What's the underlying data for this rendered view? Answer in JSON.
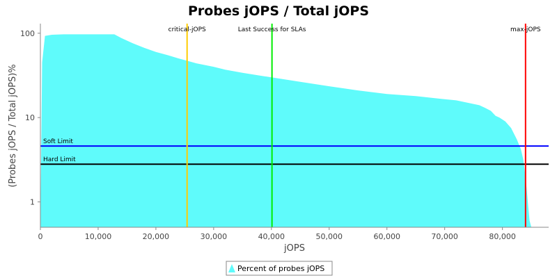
{
  "chart_data": {
    "type": "area",
    "title": "Probes jOPS / Total jOPS",
    "xlabel": "jOPS",
    "ylabel": "(Probes jOPS / Total jOPS)%",
    "x_scale": "linear",
    "y_scale": "log",
    "xlim": [
      0,
      88000
    ],
    "ylim": [
      0.5,
      130
    ],
    "x_ticks": [
      0,
      10000,
      20000,
      30000,
      40000,
      50000,
      60000,
      70000,
      80000
    ],
    "x_tick_labels": [
      "0",
      "10,000",
      "20,000",
      "30,000",
      "40,000",
      "50,000",
      "60,000",
      "70,000",
      "80,000"
    ],
    "y_ticks": [
      1,
      10,
      100
    ],
    "y_tick_labels": [
      "1",
      "10",
      "100"
    ],
    "grid": false,
    "legend_position": "bottom",
    "series": [
      {
        "name": "Percent of probes jOPS",
        "color": "#5ffbfb",
        "x": [
          0,
          300,
          800,
          2000,
          4000,
          6000,
          8000,
          10000,
          12000,
          12800,
          14000,
          16000,
          18000,
          20000,
          22000,
          24000,
          25500,
          27000,
          30000,
          32000,
          35000,
          38000,
          40000,
          45000,
          50000,
          55000,
          60000,
          65000,
          70000,
          72000,
          75000,
          76000,
          77000,
          78000,
          78800,
          79500,
          80500,
          81500,
          82500,
          83200,
          83600,
          84000,
          84400,
          84700,
          85000
        ],
        "y": [
          0.5,
          45,
          93,
          96,
          97,
          97,
          97,
          97,
          97,
          97,
          88,
          76,
          67,
          60,
          55,
          50,
          47,
          44,
          40,
          37,
          34,
          31.5,
          30,
          26.5,
          23.5,
          21,
          19,
          18,
          16.5,
          16,
          14.5,
          14,
          13,
          12,
          10.5,
          10,
          9,
          7.5,
          5.5,
          4.2,
          3.2,
          2,
          1,
          0.6,
          0.5
        ]
      }
    ],
    "thresholds": [
      {
        "label": "Soft Limit",
        "value": 4.6,
        "color": "#0000ff"
      },
      {
        "label": "Hard Limit",
        "value": 2.8,
        "color": "#000000"
      }
    ],
    "markers": [
      {
        "label": "critical-jOPS",
        "value": 25400,
        "color": "#ffcc00"
      },
      {
        "label": "Last Success for SLAs",
        "value": 40100,
        "color": "#00ee00"
      },
      {
        "label": "max-jOPS",
        "value": 84000,
        "color": "#ff0000"
      }
    ]
  }
}
